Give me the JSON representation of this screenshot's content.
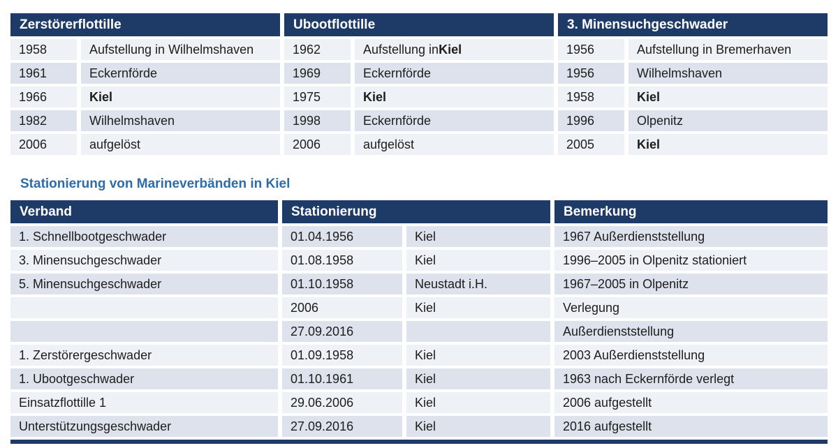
{
  "page": {
    "heading": "Stationierung von Marineverbänden in Kiel"
  },
  "colors": {
    "header_bg": "#1e3a66",
    "header_text": "#ffffff",
    "row_dark": "#dde2ed",
    "row_light": "#eef1f6",
    "heading_text": "#2e6ca9",
    "body_text": "#1d1d1b"
  },
  "top_tables": [
    {
      "title": "Zerstörerflottille",
      "rows": [
        {
          "year": "1958",
          "text": "Aufstellung in Wilhelmshaven",
          "bold": ""
        },
        {
          "year": "1961",
          "text": "Eckernförde",
          "bold": ""
        },
        {
          "year": "1966",
          "text": "",
          "bold": "Kiel"
        },
        {
          "year": "1982",
          "text": "Wilhelmshaven",
          "bold": ""
        },
        {
          "year": "2006",
          "text": "aufgelöst",
          "bold": ""
        }
      ]
    },
    {
      "title": "Ubootflottille",
      "rows": [
        {
          "year": "1962",
          "text": "Aufstellung in ",
          "bold": "Kiel"
        },
        {
          "year": "1969",
          "text": "Eckernförde",
          "bold": ""
        },
        {
          "year": "1975",
          "text": "",
          "bold": "Kiel"
        },
        {
          "year": "1998",
          "text": "Eckernförde",
          "bold": ""
        },
        {
          "year": "2006",
          "text": "aufgelöst",
          "bold": ""
        }
      ]
    },
    {
      "title": "3. Minensuchgeschwader",
      "rows": [
        {
          "year": "1956",
          "text": "Aufstellung in Bremerhaven",
          "bold": ""
        },
        {
          "year": "1956",
          "text": "Wilhelmshaven",
          "bold": ""
        },
        {
          "year": "1958",
          "text": "",
          "bold": "Kiel"
        },
        {
          "year": "1996",
          "text": "Olpenitz",
          "bold": ""
        },
        {
          "year": "2005",
          "text": "",
          "bold": "Kiel"
        }
      ]
    }
  ],
  "station_table": {
    "headers": {
      "verband": "Verband",
      "stationierung": "Stationierung",
      "bemerkung": "Bemerkung"
    },
    "rows": [
      {
        "verband": "1. Schnellbootgeschwader",
        "datum": "01.04.1956",
        "ort": "Kiel",
        "bemerkung": "1967 Außerdienststellung"
      },
      {
        "verband": "3. Minensuchgeschwader",
        "datum": "01.08.1958",
        "ort": "Kiel",
        "bemerkung": "1996–2005 in Olpenitz stationiert"
      },
      {
        "verband": "5. Minensuchgeschwader",
        "datum": "01.10.1958",
        "ort": "Neustadt i.H.",
        "bemerkung": "1967–2005 in Olpenitz"
      },
      {
        "verband": "",
        "datum": "2006",
        "ort": "Kiel",
        "bemerkung": "Verlegung"
      },
      {
        "verband": "",
        "datum": "27.09.2016",
        "ort": "",
        "bemerkung": "Außerdienststellung"
      },
      {
        "verband": "1. Zerstörergeschwader",
        "datum": "01.09.1958",
        "ort": "Kiel",
        "bemerkung": "2003 Außerdienststellung"
      },
      {
        "verband": "1. Ubootgeschwader",
        "datum": "01.10.1961",
        "ort": "Kiel",
        "bemerkung": "1963 nach Eckernförde verlegt"
      },
      {
        "verband": "Einsatzflottille 1",
        "datum": "29.06.2006",
        "ort": "Kiel",
        "bemerkung": "2006 aufgestellt"
      },
      {
        "verband": "Unterstützungsgeschwader",
        "datum": "27.09.2016",
        "ort": "Kiel",
        "bemerkung": "2016 aufgestellt"
      }
    ]
  }
}
